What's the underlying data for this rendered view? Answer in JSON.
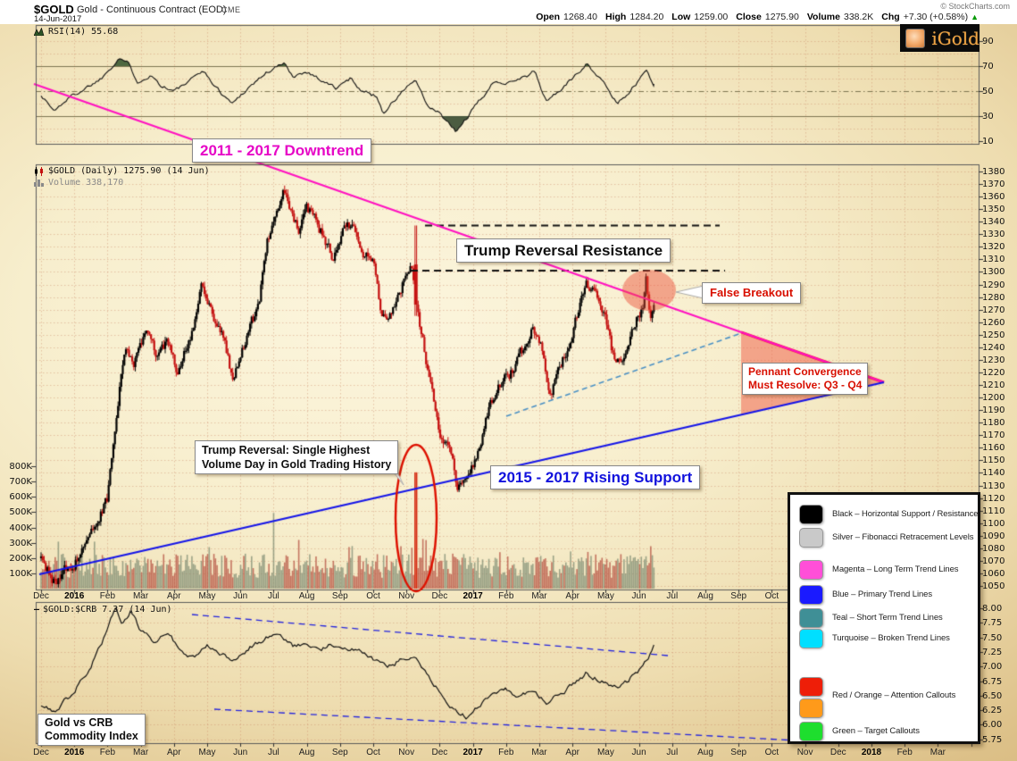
{
  "header": {
    "symbol": "$GOLD",
    "description": "Gold - Continuous Contract (EOD)",
    "exchange": "CME",
    "date": "14-Jun-2017",
    "copyright": "© StockCharts.com",
    "quote": {
      "pairs": [
        {
          "label": "Open",
          "value": "1268.40"
        },
        {
          "label": "High",
          "value": "1284.20"
        },
        {
          "label": "Low",
          "value": "1259.00"
        },
        {
          "label": "Close",
          "value": "1275.90"
        },
        {
          "label": "Volume",
          "value": "338.2K"
        },
        {
          "label": "Chg",
          "value": "+7.30 (+0.58%)"
        }
      ],
      "arrow": "▲"
    }
  },
  "logo": {
    "text": "iGold"
  },
  "panels": {
    "rsi": {
      "label": "RSI(14) 55.68",
      "ticks": [
        90,
        70,
        50,
        30,
        10
      ]
    },
    "price": {
      "label": "$GOLD (Daily) 1275.90 (14 Jun)",
      "volume_label": "Volume 338,170",
      "tick_top": 1380,
      "tick_bottom": 1050,
      "tick_step": 10,
      "volume_ticks": [
        "800K",
        "700K",
        "600K",
        "500K",
        "400K",
        "300K",
        "200K",
        "100K"
      ]
    },
    "ratio": {
      "label": "$GOLD:$CRB 7.37 (14 Jun)",
      "ticks": [
        "8.00",
        "7.75",
        "7.50",
        "7.25",
        "7.00",
        "6.75",
        "6.50",
        "6.25",
        "6.00",
        "5.75"
      ]
    }
  },
  "axis": {
    "months_mid": [
      "Dec",
      "2016",
      "Feb",
      "Mar",
      "Apr",
      "May",
      "Jun",
      "Jul",
      "Aug",
      "Sep",
      "Oct",
      "Nov",
      "Dec",
      "2017",
      "Feb",
      "Mar",
      "Apr",
      "May",
      "Jun",
      "Jul",
      "Aug",
      "Sep",
      "Oct"
    ],
    "months_bottom": [
      "Dec",
      "2016",
      "Feb",
      "Mar",
      "Apr",
      "May",
      "Jun",
      "Jul",
      "Aug",
      "Sep",
      "Oct",
      "Nov",
      "Dec",
      "2017",
      "Feb",
      "Mar",
      "Apr",
      "May",
      "Jun",
      "Jul",
      "Aug",
      "Sep",
      "Oct",
      "Nov",
      "Dec",
      "2018",
      "Feb",
      "Mar"
    ]
  },
  "callouts": {
    "downtrend": "2011 - 2017 Downtrend",
    "resistance": "Trump Reversal Resistance",
    "false_breakout": "False Breakout",
    "pennant": [
      "Pennant Convergence",
      "Must Resolve: Q3 - Q4"
    ],
    "trump_reversal": [
      "Trump Reversal: Single Highest",
      "Volume Day in Gold Trading History"
    ],
    "rising_support": "2015 - 2017 Rising Support",
    "gold_crb": [
      "Gold vs CRB",
      "Commodity Index"
    ]
  },
  "legend": {
    "entries": [
      {
        "swatches": [
          "#000000"
        ],
        "label": "Black – Horizontal Support / Resistance"
      },
      {
        "swatches": [
          "#c9c9c9"
        ],
        "label": "Silver – Fibonacci Retracement Levels"
      },
      {
        "swatches": [
          "#ff4fd8"
        ],
        "label": "Magenta – Long Term Trend Lines"
      },
      {
        "swatches": [
          "#1a1aff"
        ],
        "label": "Blue – Primary Trend Lines"
      },
      {
        "swatches": [
          "#3f8f96"
        ],
        "label": "Teal – Short Term Trend Lines"
      },
      {
        "swatches": [
          "#00dfff"
        ],
        "label": "Turquoise – Broken Trend Lines"
      },
      {
        "swatches": [
          "#ee1e08",
          "#ff9a1a"
        ],
        "label": "Red / Orange – Attention Callouts"
      },
      {
        "swatches": [
          "#1ede2e"
        ],
        "label": "Green – Target Callouts"
      }
    ]
  },
  "colors": {
    "magenta_trend": "#ff10c0",
    "blue_trend": "#1414e8",
    "teal_dashed": "#4a90c4",
    "black_dashed": "#111111",
    "candle_up": "#000000",
    "candle_down": "#c41010",
    "attention_red": "#d80f00",
    "pennant_fill": "rgba(240,90,70,0.5)"
  },
  "chart_data": [
    {
      "type": "line",
      "name": "RSI(14)",
      "panel": "rsi",
      "last": 55.68,
      "ylim": [
        0,
        100
      ],
      "visible_ticks": [
        90,
        70,
        50,
        30,
        10
      ],
      "thresholds": {
        "overbought": 70,
        "midline": 50,
        "oversold": 30
      },
      "x_unit": "months_since_Dec_2015",
      "anchors": [
        [
          0,
          47
        ],
        [
          0.4,
          34
        ],
        [
          0.8,
          44
        ],
        [
          1.3,
          52
        ],
        [
          1.8,
          60
        ],
        [
          2.35,
          77
        ],
        [
          2.6,
          73
        ],
        [
          2.9,
          58
        ],
        [
          3.3,
          63
        ],
        [
          3.6,
          55
        ],
        [
          4,
          50
        ],
        [
          4.5,
          58
        ],
        [
          4.85,
          67
        ],
        [
          5.3,
          52
        ],
        [
          5.75,
          40
        ],
        [
          6.2,
          52
        ],
        [
          6.8,
          65
        ],
        [
          7.3,
          72
        ],
        [
          7.6,
          62
        ],
        [
          8,
          66
        ],
        [
          8.5,
          58
        ],
        [
          8.9,
          52
        ],
        [
          9.3,
          60
        ],
        [
          9.7,
          50
        ],
        [
          10.1,
          46
        ],
        [
          10.3,
          33
        ],
        [
          10.7,
          44
        ],
        [
          11.1,
          56
        ],
        [
          11.3,
          58
        ],
        [
          11.6,
          38
        ],
        [
          12,
          32
        ],
        [
          12.5,
          17
        ],
        [
          12.8,
          28
        ],
        [
          13.2,
          42
        ],
        [
          13.6,
          56
        ],
        [
          14.1,
          58
        ],
        [
          14.6,
          62
        ],
        [
          14.85,
          66
        ],
        [
          15.2,
          42
        ],
        [
          15.6,
          50
        ],
        [
          16,
          60
        ],
        [
          16.45,
          73
        ],
        [
          16.75,
          62
        ],
        [
          17.05,
          52
        ],
        [
          17.35,
          40
        ],
        [
          17.7,
          50
        ],
        [
          18,
          58
        ],
        [
          18.2,
          67
        ],
        [
          18.45,
          55.7
        ]
      ]
    },
    {
      "type": "candlestick",
      "name": "$GOLD Daily",
      "panel": "price",
      "ohlc_last": {
        "open": 1268.4,
        "high": 1284.2,
        "low": 1259.0,
        "close": 1275.9
      },
      "ylim": [
        1050,
        1380
      ],
      "tick_step": 10,
      "x_unit": "months_since_Dec_2015",
      "key_levels": {
        "resistance_dashed": [
          1337,
          1301
        ]
      },
      "close_anchors": [
        [
          0,
          1072
        ],
        [
          0.45,
          1051
        ],
        [
          0.8,
          1063
        ],
        [
          1.2,
          1076
        ],
        [
          1.6,
          1094
        ],
        [
          2,
          1120
        ],
        [
          2.35,
          1206
        ],
        [
          2.55,
          1239
        ],
        [
          2.8,
          1228
        ],
        [
          3.2,
          1251
        ],
        [
          3.5,
          1232
        ],
        [
          3.8,
          1243
        ],
        [
          4.1,
          1223
        ],
        [
          4.5,
          1246
        ],
        [
          4.85,
          1289
        ],
        [
          5.1,
          1271
        ],
        [
          5.45,
          1251
        ],
        [
          5.75,
          1216
        ],
        [
          6.1,
          1242
        ],
        [
          6.55,
          1273
        ],
        [
          6.8,
          1322
        ],
        [
          7.05,
          1343
        ],
        [
          7.3,
          1371
        ],
        [
          7.5,
          1347
        ],
        [
          7.75,
          1333
        ],
        [
          8,
          1351
        ],
        [
          8.3,
          1340
        ],
        [
          8.6,
          1323
        ],
        [
          8.8,
          1313
        ],
        [
          9.1,
          1331
        ],
        [
          9.4,
          1341
        ],
        [
          9.7,
          1319
        ],
        [
          10.05,
          1307
        ],
        [
          10.25,
          1263
        ],
        [
          10.6,
          1272
        ],
        [
          10.9,
          1291
        ],
        [
          11.15,
          1305
        ],
        [
          11.42,
          1258
        ],
        [
          11.7,
          1213
        ],
        [
          12,
          1172
        ],
        [
          12.3,
          1159
        ],
        [
          12.55,
          1128
        ],
        [
          12.8,
          1139
        ],
        [
          13.1,
          1153
        ],
        [
          13.5,
          1193
        ],
        [
          13.8,
          1211
        ],
        [
          14.1,
          1219
        ],
        [
          14.5,
          1237
        ],
        [
          14.8,
          1254
        ],
        [
          15.05,
          1243
        ],
        [
          15.35,
          1203
        ],
        [
          15.7,
          1229
        ],
        [
          16,
          1251
        ],
        [
          16.4,
          1289
        ],
        [
          16.7,
          1281
        ],
        [
          17,
          1267
        ],
        [
          17.3,
          1221
        ],
        [
          17.6,
          1239
        ],
        [
          17.9,
          1261
        ],
        [
          18.1,
          1271
        ],
        [
          18.22,
          1294
        ],
        [
          18.35,
          1263
        ],
        [
          18.45,
          1275.9
        ]
      ],
      "election_candle": {
        "x": 11.28,
        "open": 1306,
        "high": 1337,
        "low": 1265,
        "close": 1274
      },
      "volume": {
        "last": 338170,
        "axis_max": 800000,
        "spike": {
          "x": 11.28,
          "value": 760000
        },
        "tall_gray_day": {
          "x": 7.02,
          "value": 495000
        }
      }
    },
    {
      "type": "line",
      "name": "$GOLD:$CRB",
      "panel": "ratio",
      "last": 7.37,
      "ylim": [
        5.75,
        8.0
      ],
      "tick_step": 0.25,
      "x_unit": "months_since_Dec_2015",
      "anchors": [
        [
          0,
          6.35
        ],
        [
          0.4,
          6.25
        ],
        [
          0.9,
          6.5
        ],
        [
          1.5,
          7
        ],
        [
          1.9,
          7.5
        ],
        [
          2.25,
          8.03
        ],
        [
          2.45,
          7.75
        ],
        [
          2.7,
          7.95
        ],
        [
          3,
          7.6
        ],
        [
          3.4,
          7.45
        ],
        [
          3.8,
          7.55
        ],
        [
          4.2,
          7.3
        ],
        [
          4.6,
          7.15
        ],
        [
          5,
          7.4
        ],
        [
          5.4,
          7.25
        ],
        [
          5.8,
          7.1
        ],
        [
          6.3,
          7.35
        ],
        [
          6.8,
          7.5
        ],
        [
          7.2,
          7.55
        ],
        [
          7.6,
          7.35
        ],
        [
          8,
          7.42
        ],
        [
          8.4,
          7.3
        ],
        [
          8.8,
          7.38
        ],
        [
          9.2,
          7.28
        ],
        [
          9.6,
          7.32
        ],
        [
          10,
          7.12
        ],
        [
          10.4,
          6.98
        ],
        [
          10.8,
          7.1
        ],
        [
          11.2,
          7.18
        ],
        [
          11.6,
          6.9
        ],
        [
          12,
          6.55
        ],
        [
          12.4,
          6.3
        ],
        [
          12.8,
          6.14
        ],
        [
          13.2,
          6.32
        ],
        [
          13.6,
          6.5
        ],
        [
          14,
          6.6
        ],
        [
          14.4,
          6.5
        ],
        [
          14.8,
          6.58
        ],
        [
          15.2,
          6.38
        ],
        [
          15.6,
          6.52
        ],
        [
          16,
          6.68
        ],
        [
          16.4,
          6.88
        ],
        [
          16.8,
          6.78
        ],
        [
          17.2,
          6.62
        ],
        [
          17.6,
          6.72
        ],
        [
          18,
          6.95
        ],
        [
          18.3,
          7.2
        ],
        [
          18.45,
          7.37
        ]
      ]
    }
  ]
}
